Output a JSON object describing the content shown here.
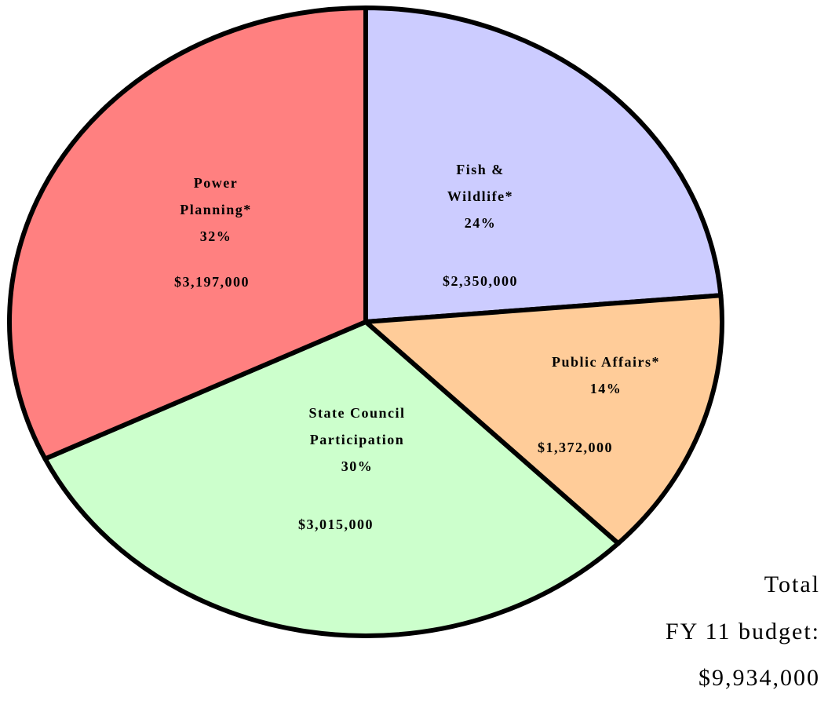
{
  "chart_data": {
    "type": "pie",
    "categories": [
      "Fish & Wildlife*",
      "Public Affairs*",
      "State Council Participation",
      "Power Planning*"
    ],
    "values": [
      2350000,
      1372000,
      3015000,
      3197000
    ],
    "value_labels": [
      "$2,350,000",
      "$1,372,000",
      "$3,015,000",
      "$3,197,000"
    ],
    "percent_labels": [
      "24%",
      "14%",
      "30%",
      "32%"
    ],
    "colors": [
      "#ccccff",
      "#ffcc99",
      "#ccffcc",
      "#ff8080"
    ],
    "annotation": [
      "Total",
      "FY 11 budget:",
      "$9,934,000"
    ]
  }
}
